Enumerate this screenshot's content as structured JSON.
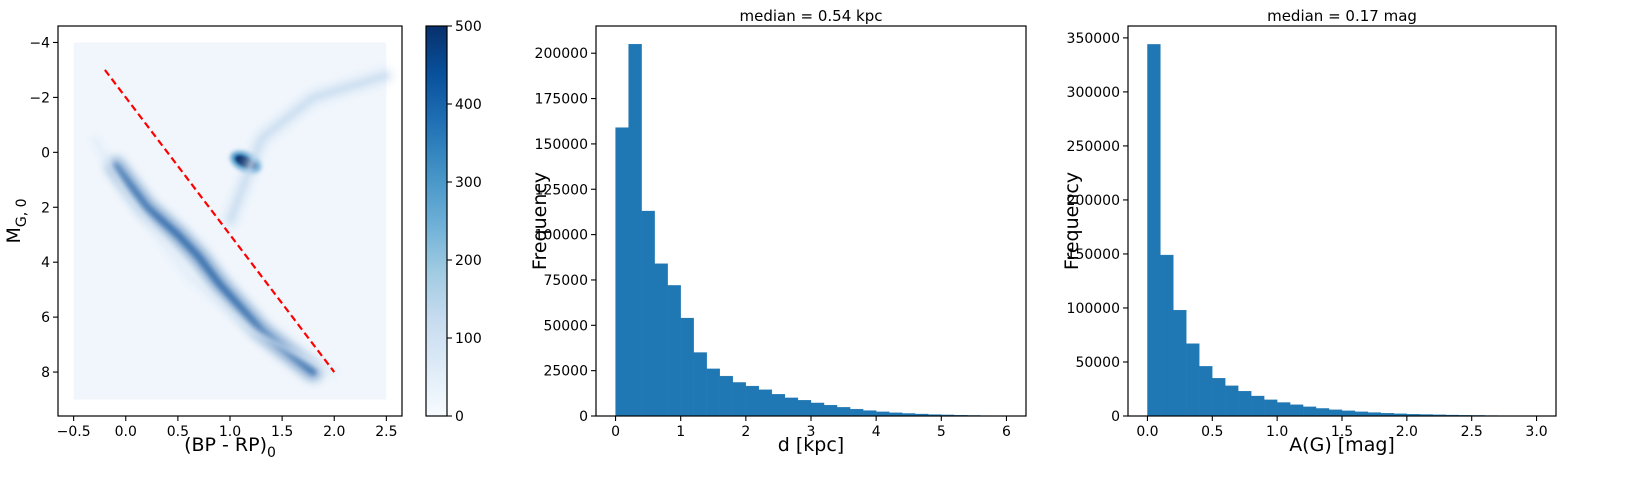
{
  "chart_data": [
    {
      "type": "heatmap",
      "title": "",
      "xlabel": "(BP - RP)",
      "xlabel_sub": "0",
      "ylabel": "M",
      "ylabel_sub": "G, 0",
      "xlim": [
        -0.65,
        2.65
      ],
      "ylim": [
        9.6,
        -4.6
      ],
      "y_inverted": true,
      "xticks": [
        -0.5,
        0.0,
        0.5,
        1.0,
        1.5,
        2.0,
        2.5
      ],
      "xtick_labels": [
        "−0.5",
        "0.0",
        "0.5",
        "1.0",
        "1.5",
        "2.0",
        "2.5"
      ],
      "yticks": [
        -4,
        -2,
        0,
        2,
        4,
        6,
        8
      ],
      "ytick_labels": [
        "−4",
        "−2",
        "0",
        "2",
        "4",
        "6",
        "8"
      ],
      "data_extent": {
        "x": [
          -0.5,
          2.5
        ],
        "y": [
          -4,
          9
        ]
      },
      "colorbar": {
        "colormap": "Blues",
        "range": [
          0,
          500
        ],
        "ticks": [
          0,
          100,
          200,
          300,
          400,
          500
        ],
        "tick_labels": [
          "0",
          "100",
          "200",
          "300",
          "400",
          "500"
        ],
        "color_low": "#f7fbff",
        "color_high": "#08306b"
      },
      "overlay_line": {
        "style": "dashed",
        "color": "#ff0000",
        "x": [
          -0.2,
          2.0
        ],
        "y": [
          -3.0,
          8.0
        ]
      },
      "density_features": [
        {
          "feature": "main sequence",
          "x": [
            -0.1,
            0.2,
            0.5,
            0.7,
            0.9,
            1.3,
            1.8
          ],
          "y": [
            0.5,
            2.0,
            3.0,
            3.8,
            4.8,
            6.5,
            8.0
          ],
          "peak_density": 450
        },
        {
          "feature": "red clump",
          "x": 1.15,
          "y": 0.35,
          "peak_density": 500
        },
        {
          "feature": "red giant branch",
          "x": [
            1.0,
            1.3,
            1.8,
            2.5
          ],
          "y": [
            2.5,
            -0.5,
            -2.0,
            -2.8
          ],
          "peak_density": 150
        },
        {
          "feature": "white dwarf sequence",
          "x": [
            -0.3,
            0.0,
            0.6,
            1.2,
            2.0
          ],
          "y": [
            -0.5,
            1.5,
            4.5,
            6.5,
            8.0
          ],
          "peak_density": 40
        }
      ]
    },
    {
      "type": "bar",
      "title": "median = 0.54 kpc",
      "xlabel": "d [kpc]",
      "ylabel": "Frequency",
      "color": "#1f77b4",
      "bin_width": 0.2,
      "bin_start": 0.0,
      "bin_edges_range": [
        0.0,
        6.0
      ],
      "values": [
        159000,
        205000,
        113000,
        84000,
        72000,
        54000,
        35000,
        26000,
        22000,
        18500,
        16500,
        14500,
        12000,
        10000,
        8700,
        7200,
        6000,
        4800,
        3800,
        3000,
        2300,
        1800,
        1400,
        1100,
        800,
        600,
        450,
        300,
        200,
        120
      ],
      "xlim": [
        -0.3,
        6.3
      ],
      "ylim": [
        0,
        215000
      ],
      "xticks": [
        0,
        1,
        2,
        3,
        4,
        5,
        6
      ],
      "xtick_labels": [
        "0",
        "1",
        "2",
        "3",
        "4",
        "5",
        "6"
      ],
      "yticks": [
        0,
        25000,
        50000,
        75000,
        100000,
        125000,
        150000,
        175000,
        200000
      ],
      "ytick_labels": [
        "0",
        "25000",
        "50000",
        "75000",
        "100000",
        "125000",
        "150000",
        "175000",
        "200000"
      ]
    },
    {
      "type": "bar",
      "title": "median = 0.17 mag",
      "xlabel": "A(G) [mag]",
      "ylabel": "Frequency",
      "color": "#1f77b4",
      "bin_width": 0.1,
      "bin_start": 0.0,
      "bin_edges_range": [
        0.0,
        3.0
      ],
      "values": [
        344000,
        149000,
        98000,
        67000,
        46000,
        35000,
        28000,
        23000,
        18500,
        15000,
        12500,
        10500,
        8500,
        7000,
        5800,
        4800,
        3900,
        3200,
        2600,
        2100,
        1700,
        1400,
        1100,
        900,
        700,
        550,
        400,
        300,
        200,
        120
      ],
      "xlim": [
        -0.15,
        3.15
      ],
      "ylim": [
        0,
        361000
      ],
      "xticks": [
        0.0,
        0.5,
        1.0,
        1.5,
        2.0,
        2.5,
        3.0
      ],
      "xtick_labels": [
        "0.0",
        "0.5",
        "1.0",
        "1.5",
        "2.0",
        "2.5",
        "3.0"
      ],
      "yticks": [
        0,
        50000,
        100000,
        150000,
        200000,
        250000,
        300000,
        350000
      ],
      "ytick_labels": [
        "0",
        "50000",
        "100000",
        "150000",
        "200000",
        "250000",
        "300000",
        "350000"
      ]
    }
  ]
}
